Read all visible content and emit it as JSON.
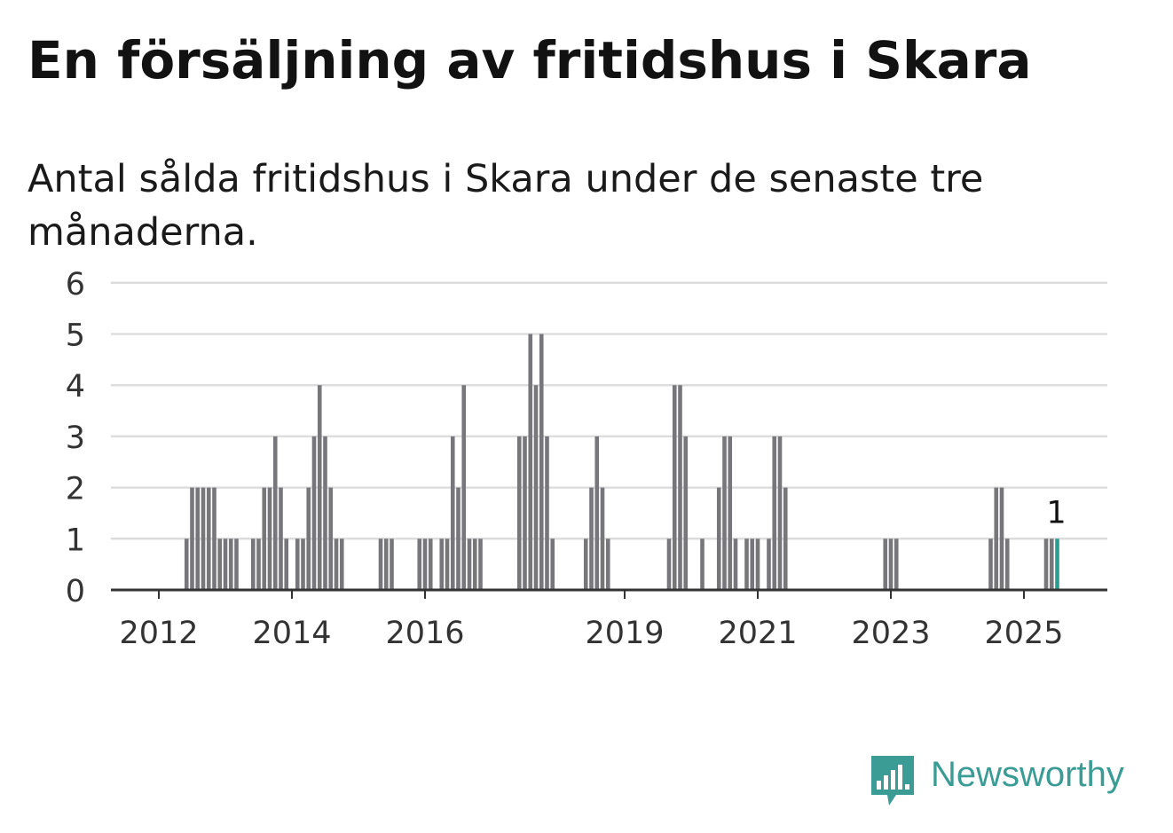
{
  "header": {
    "title": "En försäljning av fritidshus i Skara",
    "subtitle": "Antal sålda fritidshus i Skara under de senaste tre månaderna."
  },
  "brand": {
    "name": "Newsworthy",
    "color": "#3a9c95",
    "icon": "bar-chart-speech-bubble-icon"
  },
  "colors": {
    "bar": "#77767b",
    "highlight": "#2a9d8f",
    "grid": "#dddddd",
    "axis": "#333333"
  },
  "chart_data": {
    "type": "bar",
    "ylim": [
      0,
      6
    ],
    "yticks": [
      0,
      1,
      2,
      3,
      4,
      5,
      6
    ],
    "xticks": [
      "2012",
      "2014",
      "2016",
      "2019",
      "2021",
      "2023",
      "2025"
    ],
    "xtick_months": [
      0,
      24,
      48,
      84,
      108,
      132,
      156
    ],
    "start_month": "2012-01",
    "grid": true,
    "annotation": {
      "text": "1",
      "month": 162
    },
    "series": [
      {
        "bars": [
          [
            5,
            1
          ],
          [
            6,
            2
          ],
          [
            7,
            2
          ],
          [
            8,
            2
          ],
          [
            9,
            2
          ],
          [
            10,
            2
          ],
          [
            11,
            1
          ],
          [
            12,
            1
          ],
          [
            13,
            1
          ],
          [
            14,
            1
          ],
          [
            17,
            1
          ],
          [
            18,
            1
          ],
          [
            19,
            2
          ],
          [
            20,
            2
          ],
          [
            21,
            3
          ],
          [
            22,
            2
          ],
          [
            23,
            1
          ],
          [
            25,
            1
          ],
          [
            26,
            1
          ],
          [
            27,
            2
          ],
          [
            28,
            3
          ],
          [
            29,
            4
          ],
          [
            30,
            3
          ],
          [
            31,
            2
          ],
          [
            32,
            1
          ],
          [
            33,
            1
          ],
          [
            40,
            1
          ],
          [
            41,
            1
          ],
          [
            42,
            1
          ],
          [
            47,
            1
          ],
          [
            48,
            1
          ],
          [
            49,
            1
          ],
          [
            51,
            1
          ],
          [
            52,
            1
          ],
          [
            53,
            3
          ],
          [
            54,
            2
          ],
          [
            55,
            4
          ],
          [
            56,
            1
          ],
          [
            57,
            1
          ],
          [
            58,
            1
          ],
          [
            65,
            3
          ],
          [
            66,
            3
          ],
          [
            67,
            5
          ],
          [
            68,
            4
          ],
          [
            69,
            5
          ],
          [
            70,
            3
          ],
          [
            71,
            1
          ],
          [
            77,
            1
          ],
          [
            78,
            2
          ],
          [
            79,
            3
          ],
          [
            80,
            2
          ],
          [
            81,
            1
          ],
          [
            92,
            1
          ],
          [
            93,
            4
          ],
          [
            94,
            4
          ],
          [
            95,
            3
          ],
          [
            98,
            1
          ],
          [
            101,
            2
          ],
          [
            102,
            3
          ],
          [
            103,
            3
          ],
          [
            104,
            1
          ],
          [
            106,
            1
          ],
          [
            107,
            1
          ],
          [
            108,
            1
          ],
          [
            110,
            1
          ],
          [
            111,
            3
          ],
          [
            112,
            3
          ],
          [
            113,
            2
          ],
          [
            131,
            1
          ],
          [
            132,
            1
          ],
          [
            133,
            1
          ],
          [
            150,
            1
          ],
          [
            151,
            2
          ],
          [
            152,
            2
          ],
          [
            153,
            1
          ],
          [
            160,
            1
          ],
          [
            161,
            1
          ],
          [
            162,
            1
          ]
        ]
      }
    ]
  }
}
